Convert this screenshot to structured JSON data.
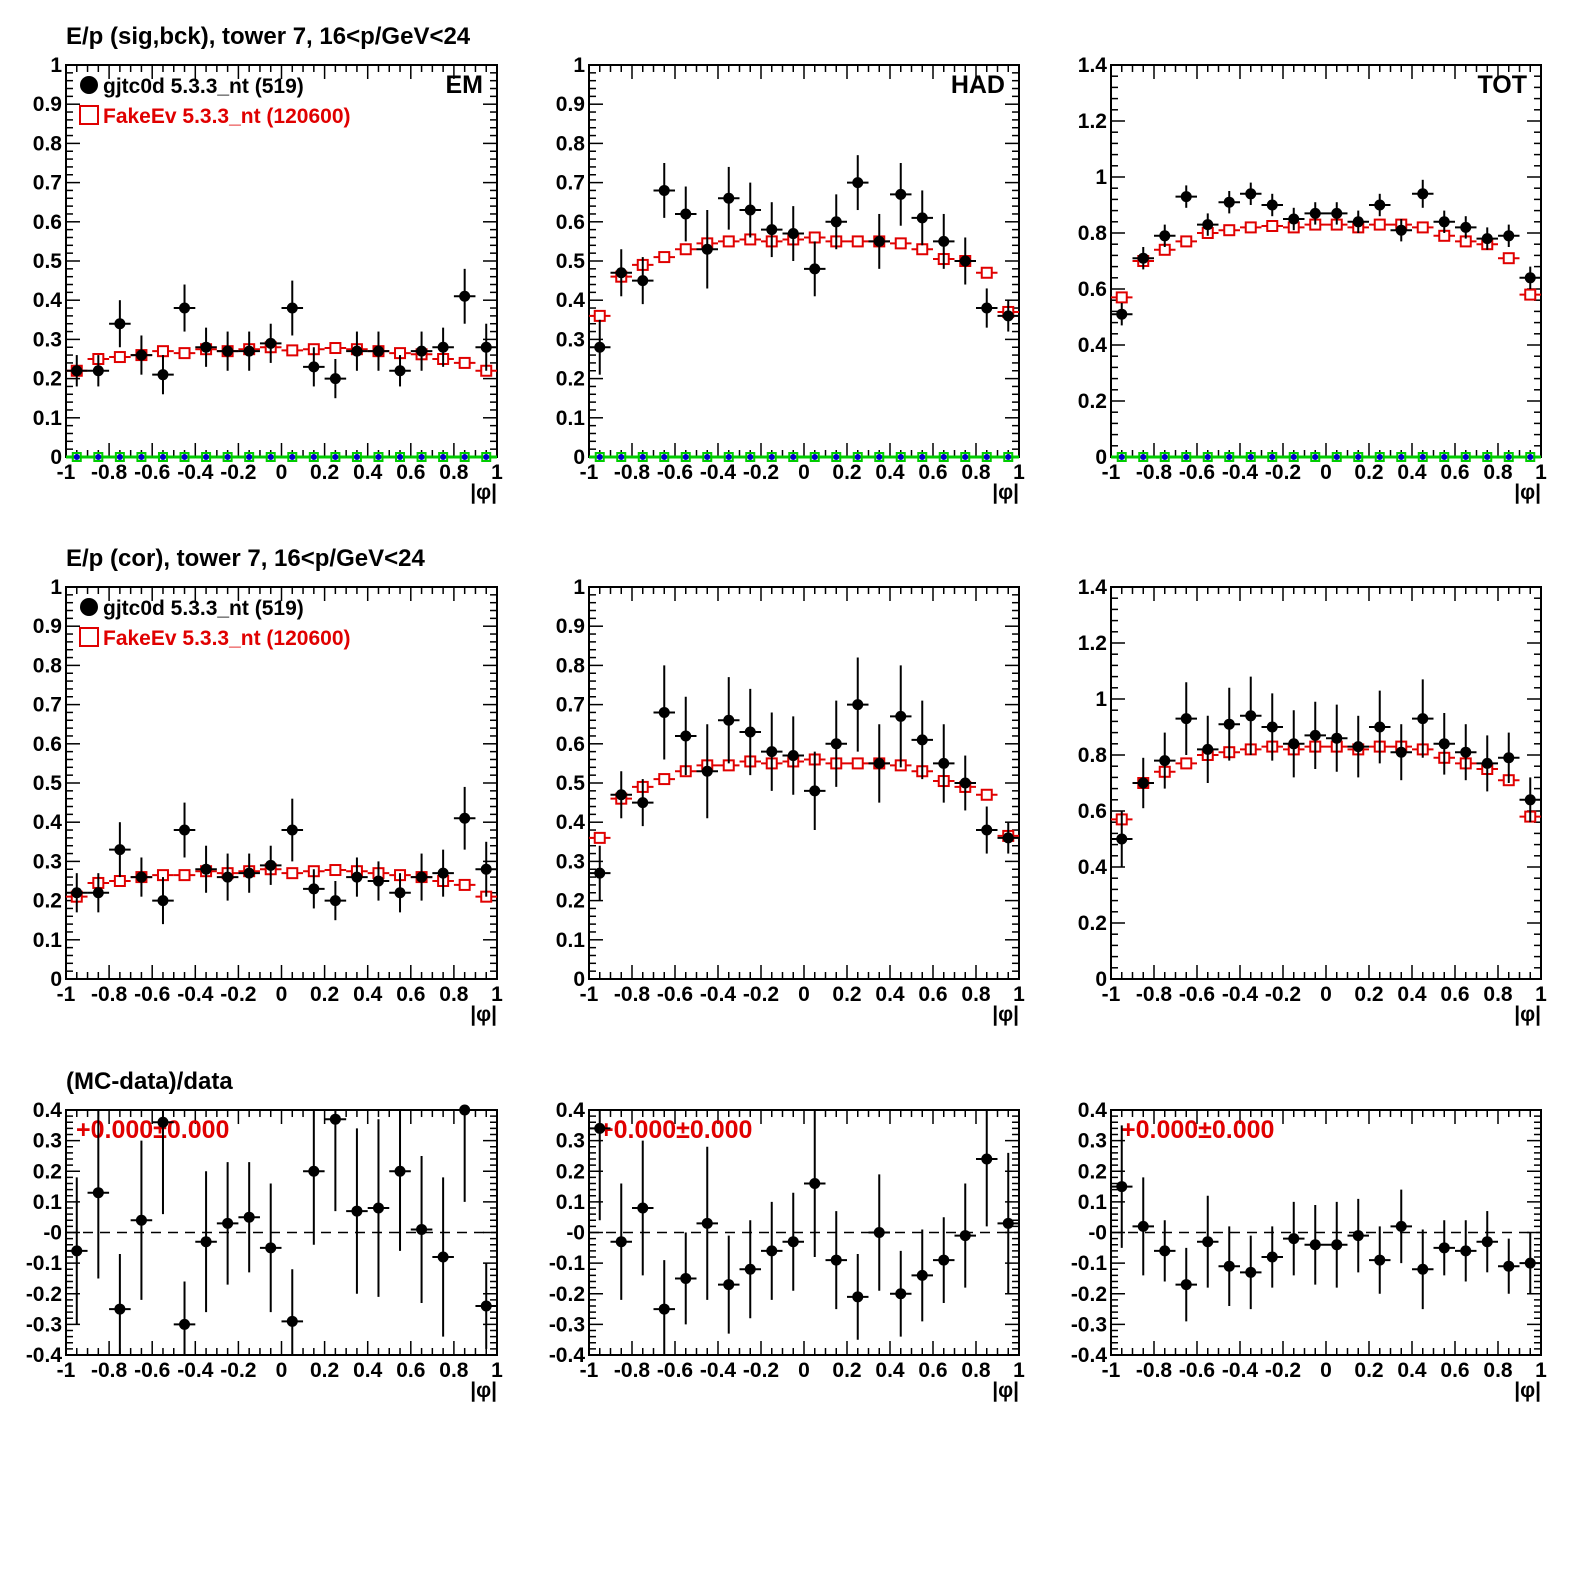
{
  "colors": {
    "data": "#000000",
    "mc": "#e00000",
    "bck_green": "#00cc00",
    "bck_blue": "#0000cc"
  },
  "legend": {
    "data_label": "gjtc0d 5.3.3_nt (519)",
    "mc_label": "FakeEv 5.3.3_nt (120600)"
  },
  "row_titles": {
    "row1": "E/p (sig,bck), tower 7, 16<p/GeV<24",
    "row2": "E/p (cor), tower 7, 16<p/GeV<24",
    "row3": "(MC-data)/data"
  },
  "ratio_label": "+0.000±0.000",
  "chart_data": [
    {
      "id": "row1-em",
      "type": "scatter",
      "corner_label": "EM",
      "xlabel": "|φ|",
      "xlim": [
        -1,
        1
      ],
      "ylim": [
        0,
        1
      ],
      "xticks": [
        "-1",
        "-0.8",
        "-0.6",
        "-0.4",
        "-0.2",
        "0",
        "0.2",
        "0.4",
        "0.6",
        "0.8",
        "1"
      ],
      "yticks": [
        "0",
        "0.1",
        "0.2",
        "0.3",
        "0.4",
        "0.5",
        "0.6",
        "0.7",
        "0.8",
        "0.9",
        "1"
      ],
      "show_legend": true,
      "show_background": true,
      "series": [
        {
          "role": "data",
          "values": [
            0.22,
            0.22,
            0.34,
            0.26,
            0.21,
            0.38,
            0.28,
            0.27,
            0.27,
            0.29,
            0.38,
            0.23,
            0.2,
            0.27,
            0.27,
            0.22,
            0.27,
            0.28,
            0.41,
            0.28
          ],
          "errors": [
            0.04,
            0.04,
            0.06,
            0.05,
            0.05,
            0.06,
            0.05,
            0.05,
            0.05,
            0.05,
            0.07,
            0.05,
            0.05,
            0.05,
            0.05,
            0.04,
            0.05,
            0.05,
            0.07,
            0.06
          ]
        },
        {
          "role": "mc",
          "values": [
            0.22,
            0.25,
            0.255,
            0.26,
            0.27,
            0.265,
            0.275,
            0.27,
            0.275,
            0.28,
            0.272,
            0.275,
            0.278,
            0.275,
            0.27,
            0.265,
            0.262,
            0.25,
            0.24,
            0.22
          ]
        }
      ]
    },
    {
      "id": "row1-had",
      "type": "scatter",
      "corner_label": "HAD",
      "xlabel": "|φ|",
      "xlim": [
        -1,
        1
      ],
      "ylim": [
        0,
        1
      ],
      "xticks": [
        "-1",
        "-0.8",
        "-0.6",
        "-0.4",
        "-0.2",
        "0",
        "0.2",
        "0.4",
        "0.6",
        "0.8",
        "1"
      ],
      "yticks": [
        "0",
        "0.1",
        "0.2",
        "0.3",
        "0.4",
        "0.5",
        "0.6",
        "0.7",
        "0.8",
        "0.9",
        "1"
      ],
      "show_legend": false,
      "show_background": true,
      "series": [
        {
          "role": "data",
          "values": [
            0.28,
            0.47,
            0.45,
            0.68,
            0.62,
            0.53,
            0.66,
            0.63,
            0.58,
            0.57,
            0.48,
            0.6,
            0.7,
            0.55,
            0.67,
            0.61,
            0.55,
            0.5,
            0.38,
            0.36
          ],
          "errors": [
            0.07,
            0.06,
            0.06,
            0.07,
            0.07,
            0.1,
            0.08,
            0.07,
            0.07,
            0.07,
            0.07,
            0.07,
            0.07,
            0.07,
            0.08,
            0.07,
            0.07,
            0.06,
            0.05,
            0.04
          ]
        },
        {
          "role": "mc",
          "values": [
            0.36,
            0.46,
            0.49,
            0.51,
            0.53,
            0.545,
            0.55,
            0.555,
            0.55,
            0.555,
            0.56,
            0.55,
            0.55,
            0.55,
            0.545,
            0.53,
            0.505,
            0.5,
            0.47,
            0.37
          ]
        }
      ]
    },
    {
      "id": "row1-tot",
      "type": "scatter",
      "corner_label": "TOT",
      "xlabel": "|φ|",
      "xlim": [
        -1,
        1
      ],
      "ylim": [
        0,
        1.4
      ],
      "xticks": [
        "-1",
        "-0.8",
        "-0.6",
        "-0.4",
        "-0.2",
        "0",
        "0.2",
        "0.4",
        "0.6",
        "0.8",
        "1"
      ],
      "yticks": [
        "0",
        "0.2",
        "0.4",
        "0.6",
        "0.8",
        "1",
        "1.2",
        "1.4"
      ],
      "show_legend": false,
      "show_background": true,
      "series": [
        {
          "role": "data",
          "values": [
            0.51,
            0.71,
            0.79,
            0.93,
            0.83,
            0.91,
            0.94,
            0.9,
            0.85,
            0.87,
            0.87,
            0.84,
            0.9,
            0.81,
            0.94,
            0.84,
            0.82,
            0.78,
            0.79,
            0.64
          ],
          "errors": [
            0.04,
            0.04,
            0.04,
            0.04,
            0.04,
            0.04,
            0.04,
            0.04,
            0.04,
            0.04,
            0.04,
            0.04,
            0.04,
            0.04,
            0.05,
            0.04,
            0.04,
            0.04,
            0.04,
            0.04
          ]
        },
        {
          "role": "mc",
          "values": [
            0.57,
            0.7,
            0.74,
            0.77,
            0.8,
            0.81,
            0.82,
            0.825,
            0.82,
            0.83,
            0.83,
            0.82,
            0.83,
            0.83,
            0.82,
            0.79,
            0.77,
            0.76,
            0.71,
            0.58
          ]
        }
      ]
    },
    {
      "id": "row2-em",
      "type": "scatter",
      "corner_label": "",
      "xlabel": "|φ|",
      "xlim": [
        -1,
        1
      ],
      "ylim": [
        0,
        1
      ],
      "xticks": [
        "-1",
        "-0.8",
        "-0.6",
        "-0.4",
        "-0.2",
        "0",
        "0.2",
        "0.4",
        "0.6",
        "0.8",
        "1"
      ],
      "yticks": [
        "0",
        "0.1",
        "0.2",
        "0.3",
        "0.4",
        "0.5",
        "0.6",
        "0.7",
        "0.8",
        "0.9",
        "1"
      ],
      "show_legend": true,
      "show_background": false,
      "series": [
        {
          "role": "data",
          "values": [
            0.22,
            0.22,
            0.33,
            0.26,
            0.2,
            0.38,
            0.28,
            0.26,
            0.27,
            0.29,
            0.38,
            0.23,
            0.2,
            0.26,
            0.25,
            0.22,
            0.26,
            0.27,
            0.41,
            0.28
          ],
          "errors": [
            0.05,
            0.05,
            0.07,
            0.05,
            0.06,
            0.07,
            0.06,
            0.06,
            0.05,
            0.05,
            0.08,
            0.05,
            0.05,
            0.05,
            0.05,
            0.05,
            0.06,
            0.06,
            0.08,
            0.07
          ]
        },
        {
          "role": "mc",
          "values": [
            0.21,
            0.245,
            0.25,
            0.26,
            0.265,
            0.265,
            0.275,
            0.27,
            0.275,
            0.28,
            0.27,
            0.275,
            0.278,
            0.275,
            0.27,
            0.265,
            0.26,
            0.25,
            0.24,
            0.21
          ]
        }
      ]
    },
    {
      "id": "row2-had",
      "type": "scatter",
      "corner_label": "",
      "xlabel": "|φ|",
      "xlim": [
        -1,
        1
      ],
      "ylim": [
        0,
        1
      ],
      "xticks": [
        "-1",
        "-0.8",
        "-0.6",
        "-0.4",
        "-0.2",
        "0",
        "0.2",
        "0.4",
        "0.6",
        "0.8",
        "1"
      ],
      "yticks": [
        "0",
        "0.1",
        "0.2",
        "0.3",
        "0.4",
        "0.5",
        "0.6",
        "0.7",
        "0.8",
        "0.9",
        "1"
      ],
      "show_legend": false,
      "show_background": false,
      "series": [
        {
          "role": "data",
          "values": [
            0.27,
            0.47,
            0.45,
            0.68,
            0.62,
            0.53,
            0.66,
            0.63,
            0.58,
            0.57,
            0.48,
            0.6,
            0.7,
            0.55,
            0.67,
            0.61,
            0.55,
            0.5,
            0.38,
            0.36
          ],
          "errors": [
            0.07,
            0.06,
            0.06,
            0.12,
            0.1,
            0.12,
            0.11,
            0.11,
            0.1,
            0.1,
            0.1,
            0.11,
            0.12,
            0.1,
            0.13,
            0.1,
            0.1,
            0.07,
            0.06,
            0.04
          ]
        },
        {
          "role": "mc",
          "values": [
            0.36,
            0.46,
            0.49,
            0.51,
            0.53,
            0.545,
            0.545,
            0.555,
            0.55,
            0.555,
            0.56,
            0.55,
            0.55,
            0.55,
            0.545,
            0.53,
            0.505,
            0.49,
            0.47,
            0.365
          ]
        }
      ]
    },
    {
      "id": "row2-tot",
      "type": "scatter",
      "corner_label": "",
      "xlabel": "|φ|",
      "xlim": [
        -1,
        1
      ],
      "ylim": [
        0,
        1.4
      ],
      "xticks": [
        "-1",
        "-0.8",
        "-0.6",
        "-0.4",
        "-0.2",
        "0",
        "0.2",
        "0.4",
        "0.6",
        "0.8",
        "1"
      ],
      "yticks": [
        "0",
        "0.2",
        "0.4",
        "0.6",
        "0.8",
        "1",
        "1.2",
        "1.4"
      ],
      "show_legend": false,
      "show_background": false,
      "series": [
        {
          "role": "data",
          "values": [
            0.5,
            0.7,
            0.78,
            0.93,
            0.82,
            0.91,
            0.94,
            0.9,
            0.84,
            0.87,
            0.86,
            0.83,
            0.9,
            0.81,
            0.93,
            0.84,
            0.81,
            0.77,
            0.79,
            0.64
          ],
          "errors": [
            0.1,
            0.09,
            0.1,
            0.13,
            0.12,
            0.13,
            0.14,
            0.12,
            0.12,
            0.12,
            0.12,
            0.11,
            0.13,
            0.1,
            0.14,
            0.11,
            0.1,
            0.1,
            0.09,
            0.08
          ]
        },
        {
          "role": "mc",
          "values": [
            0.57,
            0.7,
            0.74,
            0.77,
            0.8,
            0.81,
            0.82,
            0.83,
            0.82,
            0.83,
            0.83,
            0.82,
            0.83,
            0.83,
            0.82,
            0.79,
            0.77,
            0.75,
            0.71,
            0.58
          ]
        }
      ]
    },
    {
      "id": "row3-em",
      "type": "scatter",
      "corner_label": "",
      "xlabel": "|φ|",
      "xlim": [
        -1,
        1
      ],
      "ylim": [
        -0.4,
        0.4
      ],
      "xticks": [
        "-1",
        "-0.8",
        "-0.6",
        "-0.4",
        "-0.2",
        "0",
        "0.2",
        "0.4",
        "0.6",
        "0.8",
        "1"
      ],
      "yticks": [
        "-0.4",
        "-0.3",
        "-0.2",
        "-0.1",
        "-0",
        "0.1",
        "0.2",
        "0.3",
        "0.4"
      ],
      "show_legend": false,
      "show_background": false,
      "ratio": true,
      "series": [
        {
          "role": "data",
          "values": [
            -0.06,
            0.13,
            -0.25,
            0.04,
            0.36,
            -0.3,
            -0.03,
            0.03,
            0.05,
            -0.05,
            -0.29,
            0.2,
            0.37,
            0.07,
            0.08,
            0.2,
            0.01,
            -0.08,
            0.4,
            -0.24
          ],
          "errors": [
            0.24,
            0.28,
            0.18,
            0.26,
            0.3,
            0.14,
            0.23,
            0.2,
            0.18,
            0.21,
            0.17,
            0.24,
            0.3,
            0.27,
            0.29,
            0.26,
            0.24,
            0.26,
            0.3,
            0.14
          ]
        }
      ]
    },
    {
      "id": "row3-had",
      "type": "scatter",
      "corner_label": "",
      "xlabel": "|φ|",
      "xlim": [
        -1,
        1
      ],
      "ylim": [
        -0.4,
        0.4
      ],
      "xticks": [
        "-1",
        "-0.8",
        "-0.6",
        "-0.4",
        "-0.2",
        "0",
        "0.2",
        "0.4",
        "0.6",
        "0.8",
        "1"
      ],
      "yticks": [
        "-0.4",
        "-0.3",
        "-0.2",
        "-0.1",
        "-0",
        "0.1",
        "0.2",
        "0.3",
        "0.4"
      ],
      "show_legend": false,
      "show_background": false,
      "ratio": true,
      "series": [
        {
          "role": "data",
          "values": [
            0.34,
            -0.03,
            0.08,
            -0.25,
            -0.15,
            0.03,
            -0.17,
            -0.12,
            -0.06,
            -0.03,
            0.16,
            -0.09,
            -0.21,
            0.0,
            -0.2,
            -0.14,
            -0.09,
            -0.01,
            0.24,
            0.03
          ],
          "errors": [
            0.3,
            0.19,
            0.22,
            0.16,
            0.15,
            0.25,
            0.16,
            0.16,
            0.16,
            0.16,
            0.24,
            0.16,
            0.14,
            0.19,
            0.14,
            0.15,
            0.14,
            0.17,
            0.22,
            0.23
          ]
        }
      ]
    },
    {
      "id": "row3-tot",
      "type": "scatter",
      "corner_label": "",
      "xlabel": "|φ|",
      "xlim": [
        -1,
        1
      ],
      "ylim": [
        -0.4,
        0.4
      ],
      "xticks": [
        "-1",
        "-0.8",
        "-0.6",
        "-0.4",
        "-0.2",
        "0",
        "0.2",
        "0.4",
        "0.6",
        "0.8",
        "1"
      ],
      "yticks": [
        "-0.4",
        "-0.3",
        "-0.2",
        "-0.1",
        "-0",
        "0.1",
        "0.2",
        "0.3",
        "0.4"
      ],
      "show_legend": false,
      "show_background": false,
      "ratio": true,
      "series": [
        {
          "role": "data",
          "values": [
            0.15,
            0.02,
            -0.06,
            -0.17,
            -0.03,
            -0.11,
            -0.13,
            -0.08,
            -0.02,
            -0.04,
            -0.04,
            -0.01,
            -0.09,
            0.02,
            -0.12,
            -0.05,
            -0.06,
            -0.03,
            -0.11,
            -0.1
          ],
          "errors": [
            0.2,
            0.16,
            0.1,
            0.12,
            0.15,
            0.13,
            0.12,
            0.1,
            0.12,
            0.13,
            0.14,
            0.12,
            0.11,
            0.12,
            0.13,
            0.09,
            0.1,
            0.1,
            0.09,
            0.1
          ]
        }
      ]
    }
  ]
}
